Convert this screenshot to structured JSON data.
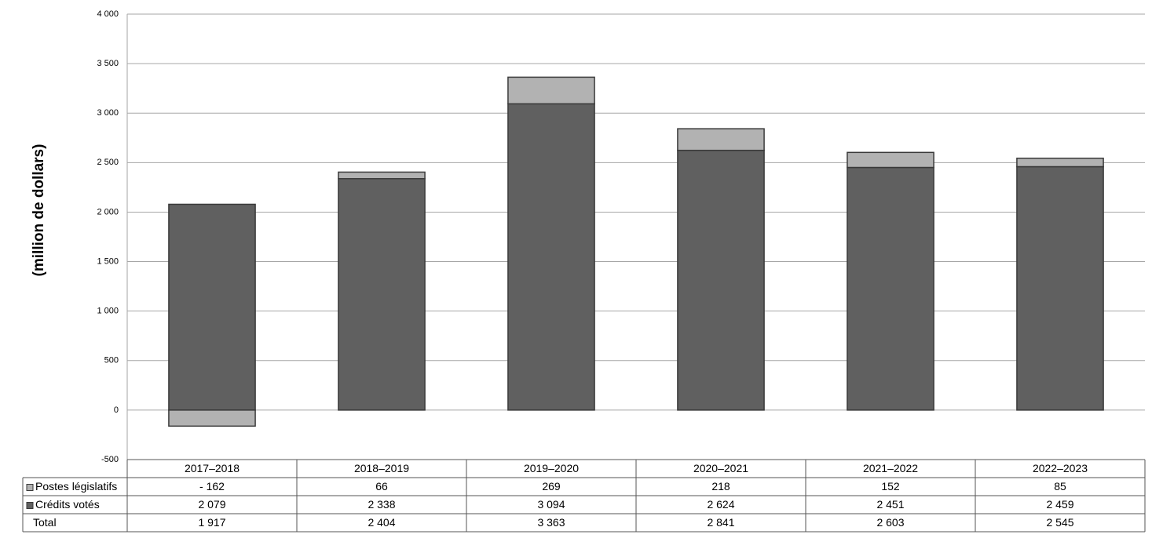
{
  "chart_data": {
    "type": "bar",
    "stacked": true,
    "y_label": "(million de dollars)",
    "categories": [
      "2017–2018",
      "2018–2019",
      "2019–2020",
      "2020–2021",
      "2021–2022",
      "2022–2023"
    ],
    "series": [
      {
        "name": "Postes législatifs",
        "color": "#b2b2b2",
        "values": [
          -162,
          66,
          269,
          218,
          152,
          85
        ],
        "value_labels": [
          "- 162",
          "66",
          "269",
          "218",
          "152",
          "85"
        ]
      },
      {
        "name": "Crédits votés",
        "color": "#606060",
        "values": [
          2079,
          2338,
          3094,
          2624,
          2451,
          2459
        ],
        "value_labels": [
          "2 079",
          "2 338",
          "3 094",
          "2 624",
          "2 451",
          "2 459"
        ]
      }
    ],
    "totals": {
      "name": "Total",
      "values": [
        1917,
        2404,
        3363,
        2841,
        2603,
        2545
      ],
      "value_labels": [
        "1 917",
        "2 404",
        "3 363",
        "2 841",
        "2 603",
        "2 545"
      ]
    },
    "ylim": [
      -500,
      4000
    ],
    "yticks": [
      -500,
      0,
      500,
      {
        "value": 1000,
        "label": "1 000"
      },
      {
        "value": 1500,
        "label": "1 500"
      },
      {
        "value": 2000,
        "label": "2 000"
      },
      {
        "value": 2500,
        "label": "2 500"
      },
      {
        "value": 3000,
        "label": "3 000"
      },
      {
        "value": 3500,
        "label": "3 500"
      },
      {
        "value": 4000,
        "label": "4 000"
      }
    ],
    "grid": true
  }
}
